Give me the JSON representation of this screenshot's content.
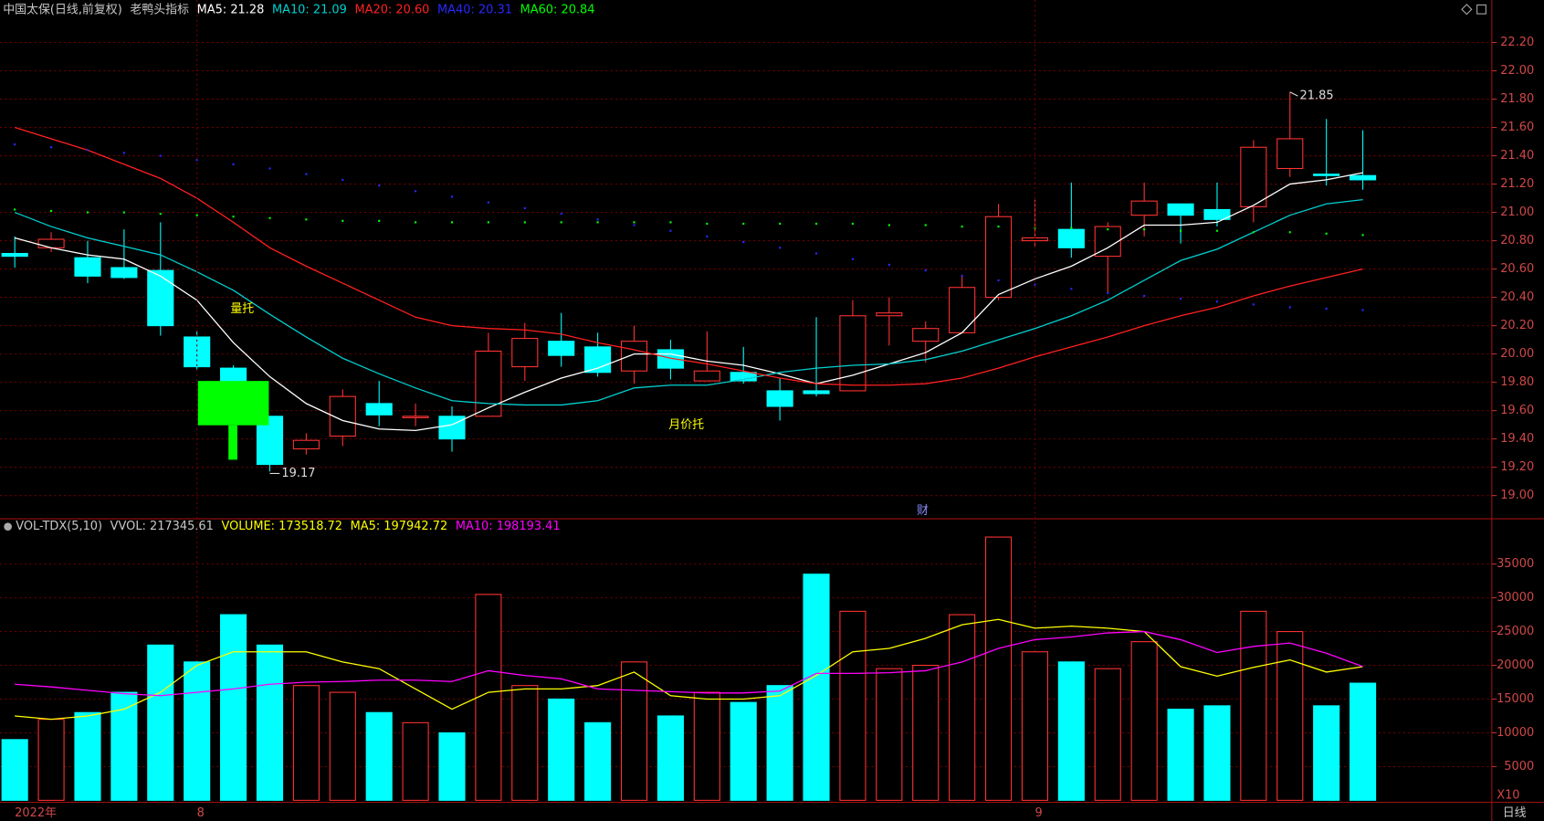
{
  "chart_data": [
    {
      "type": "candlestick",
      "title": "中国太保(日线,前复权)",
      "subtitle": "老鸭头指标",
      "title_color": "#c8c8c8",
      "open": [
        20.71,
        20.75,
        20.68,
        20.61,
        20.59,
        20.12,
        19.9,
        19.56,
        19.33,
        19.42,
        19.65,
        19.55,
        19.56,
        19.56,
        19.91,
        20.09,
        20.05,
        19.88,
        20.03,
        19.81,
        19.87,
        19.74,
        19.74,
        19.74,
        20.27,
        20.09,
        20.15,
        20.4,
        20.8,
        20.88,
        20.69,
        20.98,
        21.06,
        21.02,
        21.04,
        21.31,
        21.27,
        21.26
      ],
      "high": [
        20.83,
        20.86,
        20.8,
        20.88,
        20.93,
        20.16,
        19.92,
        19.56,
        19.44,
        19.75,
        19.81,
        19.65,
        19.63,
        20.15,
        20.22,
        20.29,
        20.15,
        20.2,
        20.1,
        20.16,
        20.05,
        19.83,
        20.26,
        20.38,
        20.4,
        20.23,
        20.56,
        21.06,
        21.09,
        21.21,
        20.93,
        21.21,
        21.06,
        21.21,
        21.51,
        21.85,
        21.66,
        21.58
      ],
      "low": [
        20.61,
        20.72,
        20.5,
        20.53,
        20.13,
        19.89,
        19.55,
        19.17,
        19.29,
        19.35,
        19.49,
        19.49,
        19.31,
        19.56,
        19.81,
        19.91,
        19.84,
        19.79,
        19.82,
        19.81,
        19.79,
        19.53,
        19.7,
        19.74,
        20.06,
        19.94,
        20.15,
        20.38,
        20.76,
        20.68,
        20.43,
        20.83,
        20.78,
        20.9,
        20.93,
        21.25,
        21.19,
        21.16
      ],
      "close": [
        20.69,
        20.81,
        20.55,
        20.54,
        20.2,
        19.91,
        19.62,
        19.22,
        19.39,
        19.7,
        19.57,
        19.56,
        19.4,
        20.02,
        20.11,
        19.99,
        19.87,
        20.09,
        19.9,
        19.88,
        19.81,
        19.63,
        19.72,
        20.27,
        20.29,
        20.18,
        20.47,
        20.97,
        20.82,
        20.75,
        20.9,
        21.08,
        20.98,
        20.95,
        21.46,
        21.52,
        21.26,
        21.23
      ],
      "up_color": "#ff3232",
      "down_color": "#00ffff",
      "series": [
        {
          "name": "MA5: 21.28",
          "color": "#ffffff",
          "style": "line",
          "values": [
            20.82,
            20.75,
            20.7,
            20.67,
            20.55,
            20.38,
            20.08,
            19.84,
            19.65,
            19.53,
            19.47,
            19.46,
            19.5,
            19.62,
            19.73,
            19.83,
            19.9,
            20.0,
            20.0,
            19.95,
            19.92,
            19.86,
            19.79,
            19.85,
            19.93,
            20.01,
            20.15,
            20.42,
            20.53,
            20.62,
            20.75,
            20.91,
            20.91,
            20.93,
            21.05,
            21.2,
            21.23,
            21.28
          ]
        },
        {
          "name": "MA10: 21.09",
          "color": "#00d0d0",
          "style": "line",
          "values": [
            21.0,
            20.9,
            20.82,
            20.76,
            20.7,
            20.58,
            20.45,
            20.28,
            20.12,
            19.97,
            19.86,
            19.76,
            19.67,
            19.65,
            19.64,
            19.64,
            19.67,
            19.76,
            19.78,
            19.78,
            19.82,
            19.87,
            19.9,
            19.92,
            19.93,
            19.96,
            20.02,
            20.1,
            20.18,
            20.27,
            20.38,
            20.52,
            20.66,
            20.74,
            20.86,
            20.98,
            21.06,
            21.09
          ]
        },
        {
          "name": "MA20: 20.60",
          "color": "#ff2020",
          "style": "line",
          "values": [
            21.6,
            21.52,
            21.44,
            21.34,
            21.24,
            21.1,
            20.93,
            20.75,
            20.62,
            20.5,
            20.38,
            20.26,
            20.2,
            20.18,
            20.17,
            20.14,
            20.08,
            20.03,
            19.97,
            19.93,
            19.88,
            19.83,
            19.79,
            19.78,
            19.78,
            19.79,
            19.83,
            19.9,
            19.98,
            20.05,
            20.12,
            20.2,
            20.27,
            20.33,
            20.41,
            20.48,
            20.54,
            20.6
          ]
        },
        {
          "name": "MA40: 20.31",
          "color": "#2828ff",
          "style": "dots",
          "values": [
            21.48,
            21.46,
            21.44,
            21.42,
            21.4,
            21.37,
            21.34,
            21.31,
            21.27,
            21.23,
            21.19,
            21.15,
            21.11,
            21.07,
            21.03,
            20.99,
            20.95,
            20.91,
            20.87,
            20.83,
            20.79,
            20.75,
            20.71,
            20.67,
            20.63,
            20.59,
            20.55,
            20.52,
            20.49,
            20.46,
            20.43,
            20.41,
            20.39,
            20.37,
            20.35,
            20.33,
            20.32,
            20.31
          ]
        },
        {
          "name": "MA60: 20.84",
          "color": "#00ff00",
          "style": "dots",
          "values": [
            21.02,
            21.01,
            21.0,
            21.0,
            20.99,
            20.98,
            20.97,
            20.96,
            20.95,
            20.94,
            20.94,
            20.93,
            20.93,
            20.93,
            20.93,
            20.93,
            20.93,
            20.93,
            20.93,
            20.92,
            20.92,
            20.92,
            20.92,
            20.92,
            20.91,
            20.91,
            20.9,
            20.9,
            20.89,
            20.89,
            20.88,
            20.88,
            20.87,
            20.87,
            20.86,
            20.86,
            20.85,
            20.84
          ]
        }
      ],
      "ylim": [
        18.85,
        22.5
      ],
      "yticks": [
        {
          "value": 19,
          "label": "19.00"
        },
        {
          "value": 19.2,
          "label": "19.20"
        },
        {
          "value": 19.4,
          "label": "19.40"
        },
        {
          "value": 19.6,
          "label": "19.60"
        },
        {
          "value": 19.8,
          "label": "19.80"
        },
        {
          "value": 20,
          "label": "20.00"
        },
        {
          "value": 20.2,
          "label": "20.20"
        },
        {
          "value": 20.4,
          "label": "20.40"
        },
        {
          "value": 20.6,
          "label": "20.60"
        },
        {
          "value": 20.8,
          "label": "20.80"
        },
        {
          "value": 21,
          "label": "21.00"
        },
        {
          "value": 21.2,
          "label": "21.20"
        },
        {
          "value": 21.4,
          "label": "21.40"
        },
        {
          "value": 21.6,
          "label": "21.60"
        },
        {
          "value": 21.8,
          "label": "21.80"
        },
        {
          "value": 22,
          "label": "22.00"
        },
        {
          "value": 22.2,
          "label": "22.20"
        }
      ],
      "grid": true,
      "max_label": 21.85,
      "min_label": 19.17,
      "annotations": [
        {
          "text": "量托",
          "color": "#ffff00"
        },
        {
          "text": "月价托",
          "color": "#ffff00"
        },
        {
          "text": "财",
          "color": "#8c8cff"
        }
      ]
    },
    {
      "type": "bar",
      "title": "VOL-TDX(5,10)",
      "subtitle": "VVOL: 217345.61",
      "title_color": "#c8c8c8",
      "categories": [
        "2022年",
        null,
        null,
        null,
        null,
        "8",
        null,
        null,
        null,
        null,
        null,
        null,
        null,
        null,
        null,
        null,
        null,
        null,
        null,
        null,
        null,
        null,
        null,
        null,
        null,
        null,
        null,
        null,
        "9",
        null,
        null,
        null,
        null,
        null,
        null,
        null,
        null,
        null
      ],
      "series": [
        {
          "name": "VOLUME: 173518.72",
          "color": "#ffff00",
          "style": "bar",
          "values": [
            9000,
            12000,
            13000,
            16000,
            23000,
            20500,
            27500,
            23000,
            17000,
            16000,
            13000,
            11500,
            10000,
            30500,
            17000,
            15000,
            11500,
            20500,
            12500,
            16000,
            14500,
            17000,
            33500,
            28000,
            19500,
            20000,
            27500,
            39000,
            22000,
            20500,
            19500,
            23500,
            13500,
            14000,
            28000,
            25000,
            14000,
            17352
          ]
        },
        {
          "name": "MA5: 197942.72",
          "color": "#ffff00",
          "style": "line",
          "values": [
            12500,
            12000,
            12500,
            13500,
            16000,
            20000,
            22000,
            22000,
            22000,
            20500,
            19500,
            16500,
            13500,
            16000,
            16500,
            16500,
            17000,
            19000,
            15500,
            15000,
            15000,
            15500,
            18500,
            22000,
            22500,
            24000,
            26000,
            26800,
            25500,
            25800,
            25500,
            25000,
            19800,
            18400,
            19700,
            20800,
            19000,
            19794
          ]
        },
        {
          "name": "MA10: 198193.41",
          "color": "#ff00ff",
          "style": "line",
          "values": [
            17200,
            16800,
            16300,
            15800,
            15500,
            16000,
            16500,
            17200,
            17500,
            17600,
            17800,
            17800,
            17600,
            19200,
            18500,
            18000,
            16500,
            16300,
            16100,
            15900,
            15900,
            16200,
            18800,
            18800,
            18900,
            19200,
            20500,
            22500,
            23800,
            24200,
            24800,
            25000,
            23800,
            21900,
            22800,
            23300,
            21800,
            19819
          ]
        }
      ],
      "ylim": [
        0,
        41560
      ],
      "yticks": [
        5000,
        10000,
        15000,
        20000,
        25000,
        30000,
        35000
      ],
      "grid": true,
      "unit_label": "X10",
      "period": "日线"
    }
  ]
}
